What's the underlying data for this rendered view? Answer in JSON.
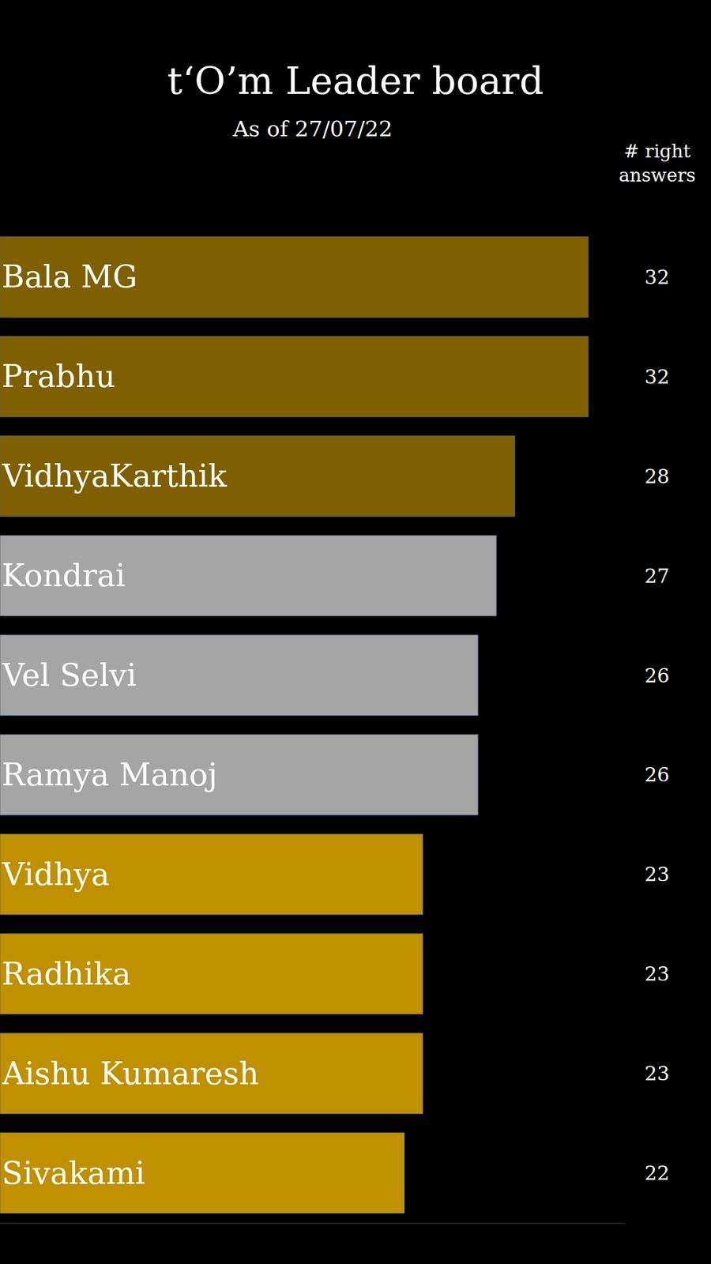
{
  "chart_data": {
    "type": "bar",
    "orientation": "horizontal",
    "title": "t‘O’m Leader board",
    "subtitle": "As of 27/07/22",
    "annotations": [
      "# right answers"
    ],
    "categories": [
      "Bala MG",
      "Prabhu",
      "VidhyaKarthik",
      "Kondrai",
      "Vel Selvi",
      "Ramya Manoj",
      "Vidhya",
      "Radhika",
      "Aishu Kumaresh",
      "Sivakami"
    ],
    "values": [
      32,
      32,
      28,
      27,
      26,
      26,
      23,
      23,
      23,
      22
    ],
    "colors": [
      "#7f6000",
      "#7f6000",
      "#7f6000",
      "#a5a5a5",
      "#a5a5a5",
      "#a5a5a5",
      "#bf9000",
      "#bf9000",
      "#bf9000",
      "#bf9000"
    ],
    "xlim": [
      0,
      34
    ],
    "data_labels": true,
    "tick_labels": false,
    "grid": false
  }
}
